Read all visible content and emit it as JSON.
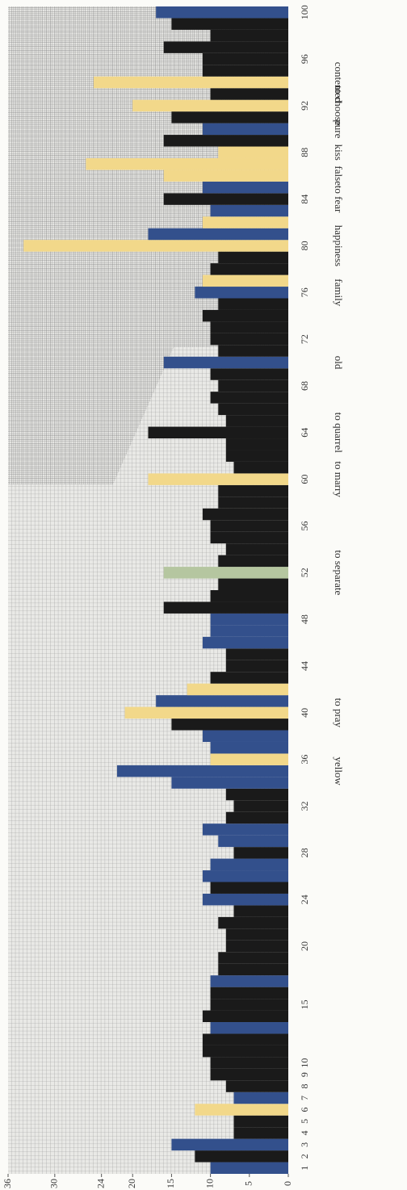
{
  "chart_data": {
    "type": "bar",
    "orientation": "horizontal",
    "categories": [
      "1",
      "2",
      "3",
      "4",
      "5",
      "6",
      "7",
      "8",
      "9",
      "10",
      null,
      null,
      null,
      null,
      "15",
      null,
      null,
      null,
      null,
      "20",
      null,
      null,
      null,
      "24",
      null,
      null,
      null,
      "28",
      null,
      null,
      null,
      "32",
      null,
      null,
      null,
      "36",
      null,
      null,
      null,
      "40",
      null,
      null,
      null,
      "44",
      null,
      null,
      null,
      "48",
      null,
      null,
      null,
      "52",
      null,
      null,
      null,
      "56",
      null,
      null,
      null,
      "60",
      null,
      null,
      null,
      "64",
      null,
      null,
      null,
      "68",
      null,
      null,
      null,
      "72",
      null,
      null,
      null,
      "76",
      null,
      null,
      null,
      "80",
      null,
      null,
      null,
      "84",
      null,
      null,
      null,
      "88",
      null,
      null,
      null,
      "92",
      null,
      null,
      null,
      "96",
      null,
      null,
      null,
      "100"
    ],
    "words": [
      null,
      null,
      null,
      null,
      null,
      null,
      null,
      null,
      null,
      null,
      null,
      null,
      null,
      null,
      null,
      null,
      null,
      null,
      null,
      null,
      null,
      null,
      null,
      null,
      null,
      null,
      null,
      null,
      null,
      null,
      null,
      null,
      null,
      null,
      "yellow",
      null,
      null,
      null,
      null,
      "to pray",
      null,
      null,
      null,
      null,
      null,
      null,
      null,
      null,
      null,
      null,
      null,
      "to separate",
      null,
      null,
      null,
      null,
      null,
      null,
      null,
      "to marry",
      null,
      null,
      null,
      "to quarrel",
      null,
      null,
      null,
      null,
      null,
      "old",
      null,
      null,
      null,
      null,
      null,
      "family",
      null,
      null,
      null,
      "happiness",
      null,
      null,
      null,
      "to fear",
      null,
      "false",
      null,
      "kiss",
      null,
      "pure",
      null,
      "to choose",
      null,
      "contented",
      null,
      null,
      null,
      null,
      null,
      null
    ],
    "values": [
      10,
      12,
      15,
      7,
      7,
      12,
      7,
      8,
      10,
      10,
      11,
      11,
      10,
      11,
      10,
      10,
      10,
      9,
      9,
      8,
      8,
      9,
      7,
      11,
      10,
      11,
      10,
      7,
      9,
      11,
      8,
      7,
      8,
      15,
      22,
      10,
      10,
      11,
      15,
      21,
      17,
      13,
      10,
      8,
      8,
      11,
      10,
      10,
      16,
      10,
      9,
      16,
      9,
      8,
      10,
      10,
      11,
      9,
      9,
      18,
      7,
      8,
      8,
      18,
      8,
      9,
      10,
      9,
      10,
      16,
      9,
      10,
      10,
      11,
      9,
      12,
      11,
      10,
      9,
      34,
      18,
      11,
      10,
      16,
      11,
      16,
      26,
      9,
      16,
      11,
      15,
      20,
      10,
      25,
      11,
      11,
      16,
      10,
      15,
      17
    ],
    "colors": [
      "#33508c",
      "#1a1a1a",
      "#33508c",
      "#1a1a1a",
      "#1a1a1a",
      "#f2d88a",
      "#33508c",
      "#1a1a1a",
      "#1a1a1a",
      "#1a1a1a",
      "#1a1a1a",
      "#1a1a1a",
      "#33508c",
      "#1a1a1a",
      "#1a1a1a",
      "#1a1a1a",
      "#33508c",
      "#1a1a1a",
      "#1a1a1a",
      "#1a1a1a",
      "#1a1a1a",
      "#1a1a1a",
      "#1a1a1a",
      "#33508c",
      "#1a1a1a",
      "#33508c",
      "#33508c",
      "#1a1a1a",
      "#33508c",
      "#33508c",
      "#1a1a1a",
      "#1a1a1a",
      "#1a1a1a",
      "#33508c",
      "#33508c",
      "#f2d88a",
      "#33508c",
      "#33508c",
      "#1a1a1a",
      "#f2d88a",
      "#33508c",
      "#f2d88a",
      "#1a1a1a",
      "#1a1a1a",
      "#1a1a1a",
      "#33508c",
      "#33508c",
      "#33508c",
      "#1a1a1a",
      "#1a1a1a",
      "#1a1a1a",
      "#b5c6a0",
      "#1a1a1a",
      "#1a1a1a",
      "#1a1a1a",
      "#1a1a1a",
      "#1a1a1a",
      "#1a1a1a",
      "#1a1a1a",
      "#f2d88a",
      "#1a1a1a",
      "#1a1a1a",
      "#1a1a1a",
      "#1a1a1a",
      "#1a1a1a",
      "#1a1a1a",
      "#1a1a1a",
      "#1a1a1a",
      "#1a1a1a",
      "#33508c",
      "#1a1a1a",
      "#1a1a1a",
      "#1a1a1a",
      "#1a1a1a",
      "#1a1a1a",
      "#33508c",
      "#f2d88a",
      "#1a1a1a",
      "#1a1a1a",
      "#f2d88a",
      "#33508c",
      "#f2d88a",
      "#33508c",
      "#1a1a1a",
      "#33508c",
      "#f2d88a",
      "#f2d88a",
      "#f2d88a",
      "#1a1a1a",
      "#33508c",
      "#1a1a1a",
      "#f2d88a",
      "#1a1a1a",
      "#f2d88a",
      "#1a1a1a",
      "#1a1a1a",
      "#1a1a1a",
      "#1a1a1a",
      "#1a1a1a",
      "#33508c"
    ],
    "xlim": [
      0,
      36
    ],
    "xticks": [
      0,
      5,
      10,
      15,
      20,
      24,
      30,
      36
    ]
  }
}
